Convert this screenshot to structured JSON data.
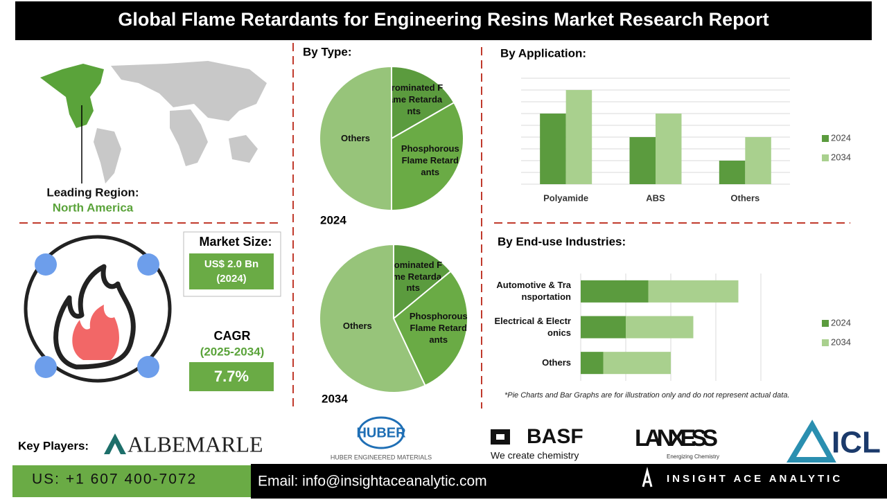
{
  "header": {
    "title": "Global Flame Retardants for Engineering Resins Market Research Report"
  },
  "region": {
    "label": "Leading Region:",
    "value": "North America"
  },
  "market_size": {
    "label": "Market Size:",
    "value": "US$ 2.0 Bn",
    "year": "(2024)"
  },
  "cagr": {
    "label": "CAGR",
    "period": "(2025-2034)",
    "value": "7.7%"
  },
  "chart_data": [
    {
      "type": "pie",
      "title": "By Type:",
      "subtitle": "2024",
      "categories": [
        "Brominated Flame Retardants",
        "Phosphorous Flame Retardants",
        "Others"
      ],
      "values": [
        16.7,
        33.3,
        50
      ],
      "colors": [
        "#5b9b3e",
        "#6aab45",
        "#97c47a"
      ]
    },
    {
      "type": "pie",
      "subtitle": "2034",
      "categories": [
        "Brominated Flame Retardants",
        "Phosphorous Flame Retardants",
        "Others"
      ],
      "values": [
        14,
        29,
        57
      ],
      "colors": [
        "#5b9b3e",
        "#6aab45",
        "#97c47a"
      ]
    },
    {
      "type": "bar",
      "title": "By Application:",
      "categories": [
        "Polyamide",
        "ABS",
        "Others"
      ],
      "series": [
        {
          "name": "2024",
          "color": "#5b9b3e",
          "values": [
            6,
            4,
            2
          ]
        },
        {
          "name": "2034",
          "color": "#a9d08e",
          "values": [
            8,
            6,
            4
          ]
        }
      ],
      "ylim": [
        0,
        9
      ],
      "yticks": [
        0,
        1,
        2,
        3,
        4,
        5,
        6,
        7,
        8,
        9
      ],
      "grid": true,
      "legend": "right"
    },
    {
      "type": "barh-stacked",
      "title": "By End-use Industries:",
      "categories": [
        "Automotive & Transportation",
        "Electrical & Electronics",
        "Others"
      ],
      "series": [
        {
          "name": "2024",
          "color": "#5b9b3e",
          "values": [
            1.5,
            1,
            0.5
          ]
        },
        {
          "name": "2034",
          "color": "#a9d08e",
          "values": [
            2,
            1.5,
            1.5
          ]
        }
      ],
      "xlim": [
        0,
        4
      ],
      "xticks": [
        0,
        1,
        2,
        3,
        4
      ],
      "grid": true,
      "legend": "right"
    }
  ],
  "note": "*Pie Charts and Bar Graphs are for illustration only and do not represent actual data.",
  "key_players": {
    "label": "Key Players:",
    "albemarle": "ALBEMARLE",
    "huber": "HUBER",
    "huber_sub": "HUBER ENGINEERED MATERIALS",
    "basf": "BASF",
    "basf_sub": "We create chemistry",
    "lanxess": "LANXESS",
    "lanxess_sub": "Energizing Chemistry",
    "icl": "ICL"
  },
  "footer": {
    "phone": "US: +1 607 400-7072",
    "email": "Email: info@insightaceanalytic.com",
    "brand": "INSIGHT ACE ANALYTIC"
  }
}
